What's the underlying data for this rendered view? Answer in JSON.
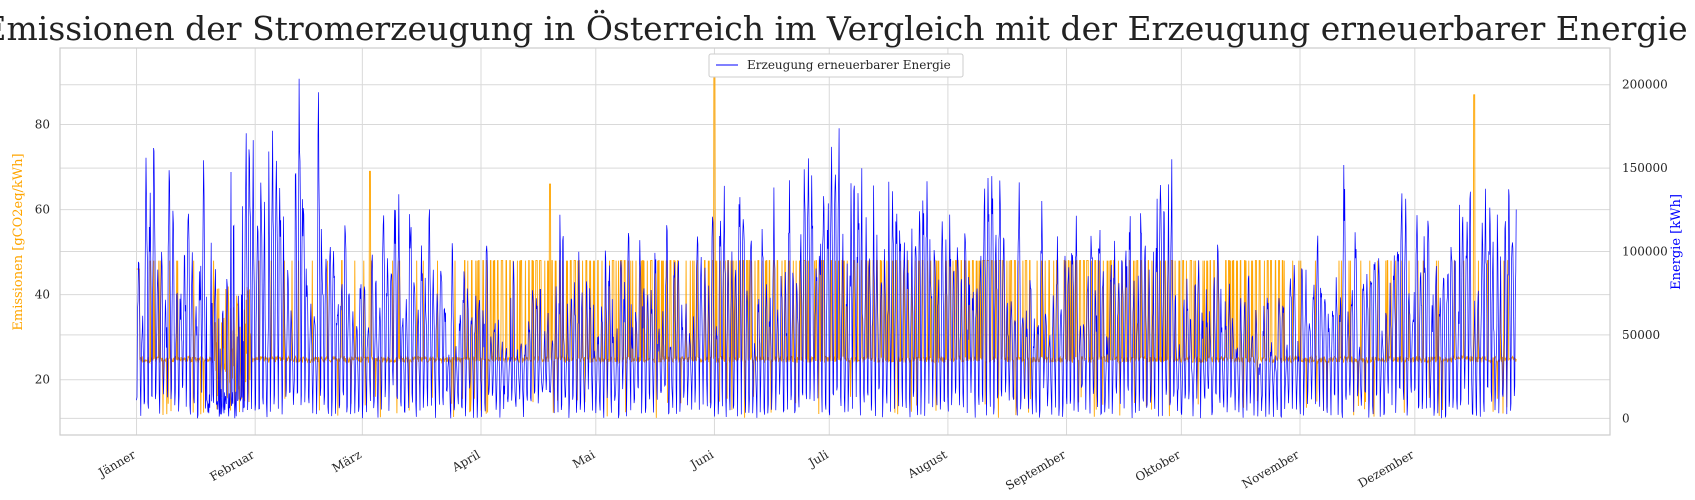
{
  "chart_data": {
    "type": "line",
    "title": "Emissionen der Stromerzeugung in Österreich im Vergleich mit der Erzeugung erneuerbarer Energie",
    "y_left": {
      "label": "Emissionen [gCO2eq/kWh]",
      "ticks": [
        20,
        40,
        60,
        80
      ],
      "range": [
        7,
        98
      ],
      "color": "#FFA500"
    },
    "y_right": {
      "label": "Energie [kWh]",
      "ticks": [
        0,
        50000,
        100000,
        150000,
        200000
      ],
      "range": [
        -10000,
        222000
      ],
      "color": "#0000FF"
    },
    "x": {
      "range": [
        -20,
        385
      ],
      "ticks": [
        {
          "day": 0,
          "label": "Jänner"
        },
        {
          "day": 31,
          "label": "Februar"
        },
        {
          "day": 59,
          "label": "März"
        },
        {
          "day": 90,
          "label": "April"
        },
        {
          "day": 120,
          "label": "Mai"
        },
        {
          "day": 151,
          "label": "Juni"
        },
        {
          "day": 181,
          "label": "Juli"
        },
        {
          "day": 212,
          "label": "August"
        },
        {
          "day": 243,
          "label": "September"
        },
        {
          "day": 273,
          "label": "Oktober"
        },
        {
          "day": 304,
          "label": "November"
        },
        {
          "day": 334,
          "label": "Dezember"
        }
      ]
    },
    "legend": {
      "position": "top-center",
      "entries": [
        "Erzeugung erneuerbarer Energie"
      ]
    },
    "grid": true,
    "series": [
      {
        "name": "Emissionen",
        "axis": "left",
        "color": "#FFA500"
      },
      {
        "name": "Erzeugung erneuerbarer Energie",
        "axis": "right",
        "color": "#0000FF"
      }
    ]
  }
}
